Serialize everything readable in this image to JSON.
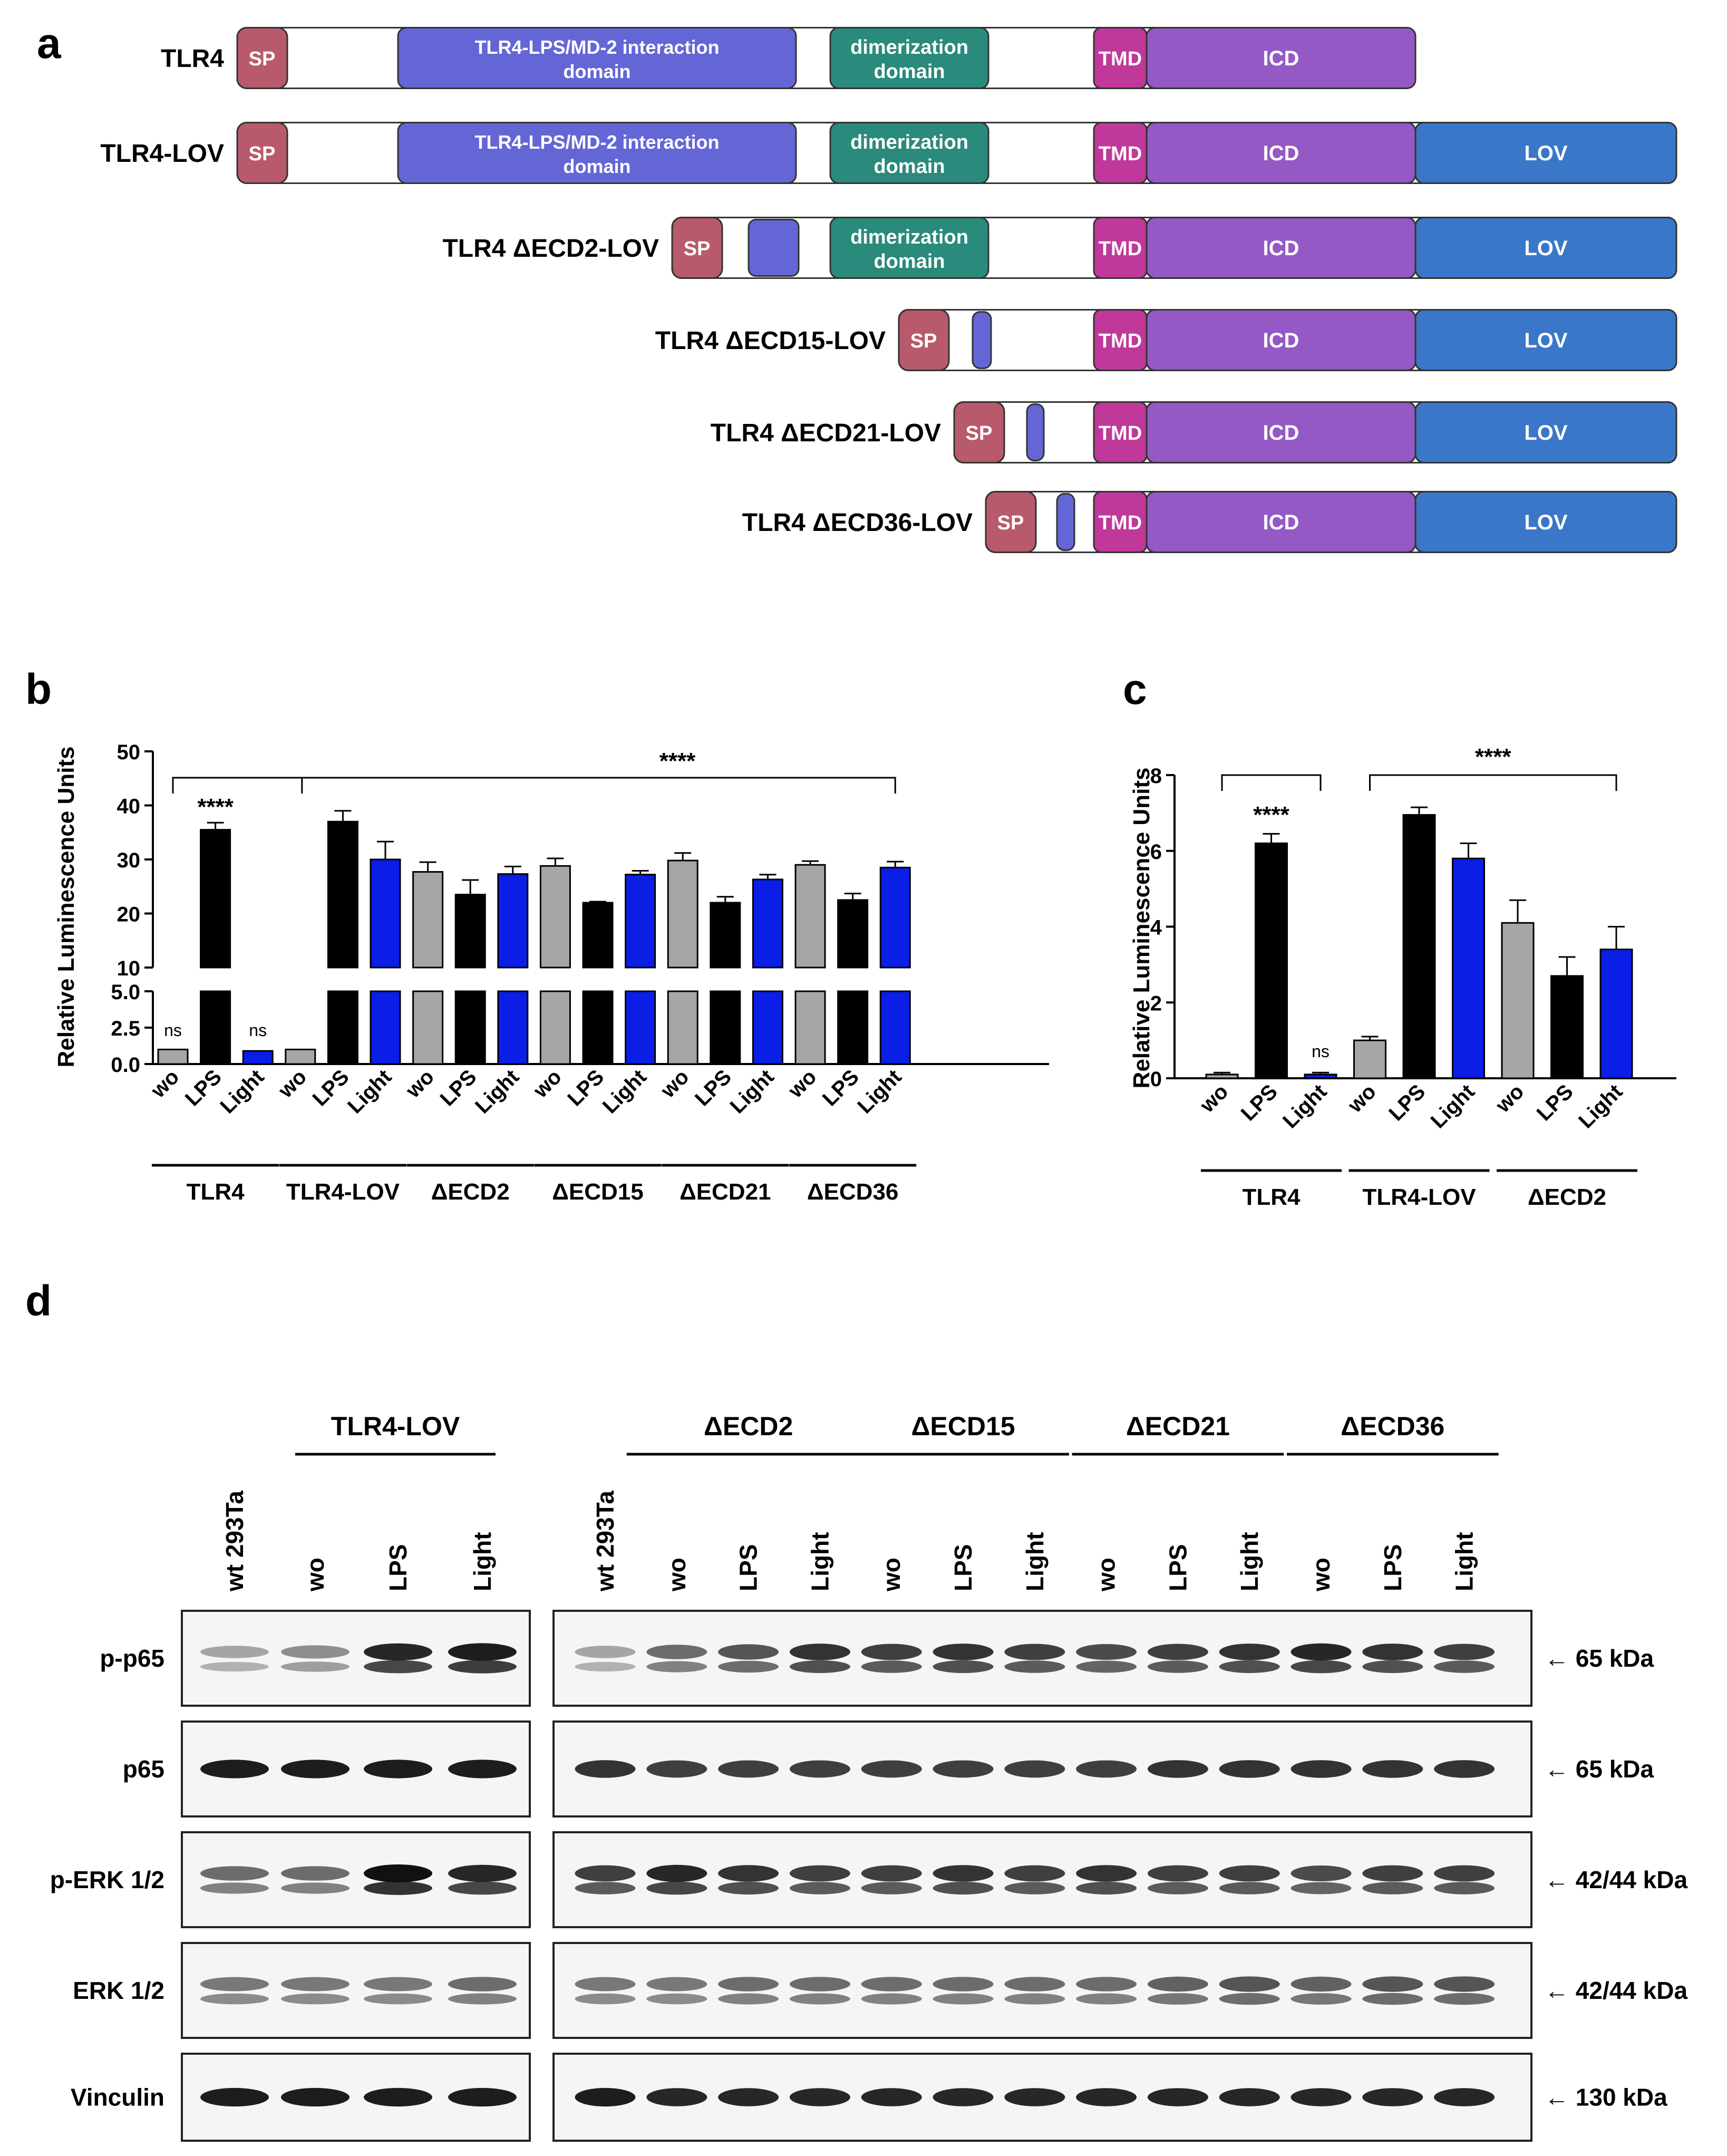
{
  "panel_labels": {
    "a": "a",
    "b": "b",
    "c": "c",
    "d": "d"
  },
  "panel_a": {
    "constructs": [
      {
        "name": "TLR4",
        "segments": [
          {
            "type": "sp",
            "label": "SP"
          },
          {
            "type": "ecd",
            "label": "TLR4-LPS/MD-2 interaction domain",
            "lines": [
              "TLR4-LPS/MD-2 interaction",
              "domain"
            ]
          },
          {
            "type": "dimer",
            "label": "dimerization domain",
            "lines": [
              "dimerization",
              "domain"
            ]
          },
          {
            "type": "tmd",
            "label": "TMD"
          },
          {
            "type": "icd",
            "label": "ICD"
          }
        ]
      },
      {
        "name": "TLR4-LOV",
        "segments": [
          {
            "type": "sp",
            "label": "SP"
          },
          {
            "type": "ecd",
            "label": "TLR4-LPS/MD-2 interaction domain",
            "lines": [
              "TLR4-LPS/MD-2 interaction",
              "domain"
            ]
          },
          {
            "type": "dimer",
            "label": "dimerization domain",
            "lines": [
              "dimerization",
              "domain"
            ]
          },
          {
            "type": "tmd",
            "label": "TMD"
          },
          {
            "type": "icd",
            "label": "ICD"
          },
          {
            "type": "lov",
            "label": "LOV"
          }
        ]
      },
      {
        "name": "TLR4 ΔECD2-LOV",
        "segments": [
          {
            "type": "sp",
            "label": "SP"
          },
          {
            "type": "ecd_frag",
            "label": ""
          },
          {
            "type": "dimer",
            "label": "dimerization domain",
            "lines": [
              "dimerization",
              "domain"
            ]
          },
          {
            "type": "tmd",
            "label": "TMD"
          },
          {
            "type": "icd",
            "label": "ICD"
          },
          {
            "type": "lov",
            "label": "LOV"
          }
        ]
      },
      {
        "name": "TLR4 ΔECD15-LOV",
        "segments": [
          {
            "type": "sp",
            "label": "SP"
          },
          {
            "type": "ecd_frag",
            "label": ""
          },
          {
            "type": "tmd",
            "label": "TMD"
          },
          {
            "type": "icd",
            "label": "ICD"
          },
          {
            "type": "lov",
            "label": "LOV"
          }
        ]
      },
      {
        "name": "TLR4 ΔECD21-LOV",
        "segments": [
          {
            "type": "sp",
            "label": "SP"
          },
          {
            "type": "ecd_frag",
            "label": ""
          },
          {
            "type": "tmd",
            "label": "TMD"
          },
          {
            "type": "icd",
            "label": "ICD"
          },
          {
            "type": "lov",
            "label": "LOV"
          }
        ]
      },
      {
        "name": "TLR4 ΔECD36-LOV",
        "segments": [
          {
            "type": "sp",
            "label": "SP"
          },
          {
            "type": "ecd_frag",
            "label": ""
          },
          {
            "type": "tmd",
            "label": "TMD"
          },
          {
            "type": "icd",
            "label": "ICD"
          },
          {
            "type": "lov",
            "label": "LOV"
          }
        ]
      }
    ],
    "colors": {
      "sp": "#b85a6b",
      "ecd": "#6466d6",
      "dimer": "#2a8a7c",
      "tmd": "#c0399a",
      "icd": "#9459c4",
      "lov": "#3a77c8"
    }
  },
  "chart_data": [
    {
      "type": "bar",
      "panel": "b",
      "ylabel": "Relative Luminescence Units",
      "broken_axis": {
        "lower": [
          0,
          5
        ],
        "upper": [
          10,
          50
        ]
      },
      "yticks_lower": [
        "0.0",
        "2.5",
        "5.0"
      ],
      "yticks_upper": [
        "10",
        "20",
        "30",
        "40",
        "50"
      ],
      "categories": [
        "wo",
        "LPS",
        "Light",
        "wo",
        "LPS",
        "Light",
        "wo",
        "LPS",
        "Light",
        "wo",
        "LPS",
        "Light",
        "wo",
        "LPS",
        "Light",
        "wo",
        "LPS",
        "Light"
      ],
      "values": [
        1.0,
        35.5,
        0.9,
        1.0,
        37.0,
        30.0,
        27.7,
        23.5,
        27.3,
        28.8,
        22.0,
        27.2,
        29.8,
        22.0,
        26.3,
        29.0,
        22.5,
        28.5
      ],
      "errors": [
        0.1,
        1.3,
        0.1,
        0.1,
        2.0,
        3.3,
        1.8,
        2.7,
        1.4,
        1.4,
        0.2,
        0.7,
        1.4,
        1.1,
        0.9,
        0.7,
        1.2,
        1.1
      ],
      "bar_colors": [
        "#a6a6a6",
        "#000000",
        "#0a1ee6",
        "#a6a6a6",
        "#000000",
        "#0a1ee6",
        "#a6a6a6",
        "#000000",
        "#0a1ee6",
        "#a6a6a6",
        "#000000",
        "#0a1ee6",
        "#a6a6a6",
        "#000000",
        "#0a1ee6",
        "#a6a6a6",
        "#000000",
        "#0a1ee6"
      ],
      "groups": [
        "TLR4",
        "TLR4-LOV",
        "ΔECD2",
        "ΔECD15",
        "ΔECD21",
        "ΔECD36"
      ],
      "annotations": {
        "ns_first": "ns",
        "stars_lps": "****",
        "ns_light": "ns",
        "stars_bracket": "****"
      }
    },
    {
      "type": "bar",
      "panel": "c",
      "ylabel": "Relative Luminescence Units",
      "ylim": [
        0,
        8
      ],
      "yticks": [
        "0",
        "2",
        "4",
        "6",
        "8"
      ],
      "categories": [
        "wo",
        "LPS",
        "Light",
        "wo",
        "LPS",
        "Light",
        "wo",
        "LPS",
        "Light"
      ],
      "values": [
        0.1,
        6.2,
        0.1,
        1.0,
        6.95,
        5.8,
        4.1,
        2.7,
        3.4
      ],
      "errors": [
        0.05,
        0.25,
        0.05,
        0.1,
        0.2,
        0.4,
        0.6,
        0.5,
        0.6
      ],
      "bar_colors": [
        "#a6a6a6",
        "#000000",
        "#0a1ee6",
        "#a6a6a6",
        "#000000",
        "#0a1ee6",
        "#a6a6a6",
        "#000000",
        "#0a1ee6"
      ],
      "groups": [
        "TLR4",
        "TLR4-LOV",
        "ΔECD2"
      ],
      "annotations": {
        "stars_lps": "****",
        "ns_light": "ns",
        "stars_bracket": "****"
      }
    }
  ],
  "panel_d": {
    "group_headers": [
      "TLR4-LOV",
      "ΔECD2",
      "ΔECD15",
      "ΔECD21",
      "ΔECD36"
    ],
    "lanes_left": [
      "wt 293Ta",
      "wo",
      "LPS",
      "Light"
    ],
    "lanes_right": [
      "wt 293Ta",
      "wo",
      "LPS",
      "Light",
      "wo",
      "LPS",
      "Light",
      "wo",
      "LPS",
      "Light",
      "wo",
      "LPS",
      "Light"
    ],
    "blots": [
      {
        "label": "p-p65",
        "size": "← 65 kDa"
      },
      {
        "label": "p65",
        "size": "← 65 kDa"
      },
      {
        "label": "p-ERK 1/2",
        "size": "← 42/44 kDa"
      },
      {
        "label": "ERK 1/2",
        "size": "← 42/44 kDa"
      },
      {
        "label": "Vinculin",
        "size": "← 130 kDa"
      }
    ]
  }
}
